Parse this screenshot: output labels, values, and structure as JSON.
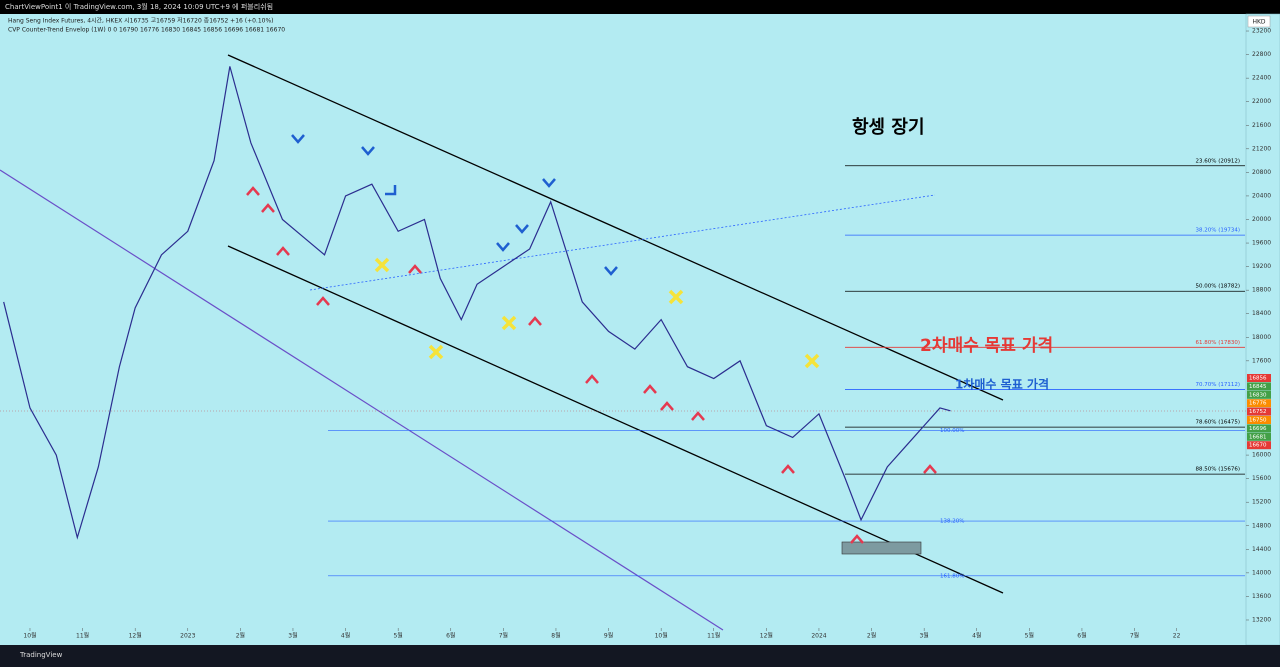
{
  "header": {
    "publisher": "ChartViewPoint1 이 TradingView.com, 3월 18, 2024 10:09 UTC+9 에 퍼블리쉬됨",
    "legend_main": "Hang Seng Index Futures, 4시간, HKEX  시16735  고16759  저16720  종16752  +16 (+0.10%)",
    "legend_indicator": "CVP Counter-Trend Envelop (1W)  0  0  16790  16776  16830  16845  16856  16696  16681  16670",
    "currency": "HKD",
    "brand": "TradingView"
  },
  "chart_data": {
    "type": "line",
    "title": "항셍 장기",
    "annotations": [
      {
        "text": "2차매수 목표 가격",
        "color": "#e53935"
      },
      {
        "text": "1차매수 목표 가격",
        "color": "#1e5fd0"
      }
    ],
    "x": [
      -0.5,
      0,
      0.5,
      0.9,
      1.3,
      1.7,
      2,
      2.5,
      3,
      3.5,
      3.8,
      4.2,
      4.8,
      5.2,
      5.6,
      6,
      6.5,
      7,
      7.5,
      7.8,
      8.2,
      8.5,
      9,
      9.5,
      9.9,
      10.5,
      11,
      11.5,
      12,
      12.5,
      13,
      13.5,
      14,
      14.5,
      15,
      15.5,
      15.8,
      16.3,
      16.7,
      17,
      17.3,
      17.5
    ],
    "series": [
      {
        "name": "Hang Seng Index Futures",
        "color": "#2b2d8f",
        "values": [
          18600,
          16800,
          16000,
          14600,
          15800,
          17500,
          18500,
          19400,
          19800,
          21000,
          22600,
          21300,
          20000,
          19700,
          19400,
          20400,
          20600,
          19800,
          20000,
          19000,
          18300,
          18900,
          19200,
          19500,
          20300,
          18600,
          18100,
          17800,
          18300,
          17500,
          17300,
          17600,
          16500,
          16300,
          16700,
          15600,
          14900,
          15800,
          16200,
          16500,
          16800,
          16752
        ]
      }
    ],
    "xlim": [
      -0.57,
      23.1
    ],
    "ylim": [
      13064,
      23489
    ],
    "xticks": [
      {
        "value": 0,
        "label": "10월"
      },
      {
        "value": 1,
        "label": "11월"
      },
      {
        "value": 2,
        "label": "12월"
      },
      {
        "value": 3,
        "label": "2023"
      },
      {
        "value": 4,
        "label": "2월"
      },
      {
        "value": 5,
        "label": "3월"
      },
      {
        "value": 6,
        "label": "4월"
      },
      {
        "value": 7,
        "label": "5월"
      },
      {
        "value": 8,
        "label": "6월"
      },
      {
        "value": 9,
        "label": "7월"
      },
      {
        "value": 10,
        "label": "8월"
      },
      {
        "value": 11,
        "label": "9월"
      },
      {
        "value": 12,
        "label": "10월"
      },
      {
        "value": 13,
        "label": "11월"
      },
      {
        "value": 14,
        "label": "12월"
      },
      {
        "value": 15,
        "label": "2024"
      },
      {
        "value": 16,
        "label": "2월"
      },
      {
        "value": 17,
        "label": "3월"
      },
      {
        "value": 18,
        "label": "4월"
      },
      {
        "value": 19,
        "label": "5월"
      },
      {
        "value": 20,
        "label": "6월"
      },
      {
        "value": 21,
        "label": "7월"
      },
      {
        "value": 21.8,
        "label": "22"
      }
    ],
    "yticks": [
      13200,
      13600,
      14000,
      14400,
      14800,
      15200,
      15600,
      16000,
      17600,
      18000,
      18400,
      18800,
      19200,
      19600,
      20000,
      20400,
      20800,
      21200,
      21600,
      22000,
      22400,
      22800,
      23200
    ],
    "fib_levels": [
      {
        "label": "23.60% (20912)",
        "value": 20912,
        "color": "#000000"
      },
      {
        "label": "38.20% (19734)",
        "value": 19734,
        "color": "#2962ff"
      },
      {
        "label": "50.00% (18782)",
        "value": 18782,
        "color": "#000000"
      },
      {
        "label": "61.80% (17830)",
        "value": 17830,
        "color": "#e53935"
      },
      {
        "label": "70.70% (17112)",
        "value": 17112,
        "color": "#2962ff"
      },
      {
        "label": "78.60% (16475)",
        "value": 16475,
        "color": "#000000"
      },
      {
        "label": "88.50% (15676)",
        "value": 15676,
        "color": "#000000"
      }
    ],
    "extension_levels": [
      {
        "label": "100.00%",
        "value": 16420,
        "color": "#2962ff"
      },
      {
        "label": "138.20%",
        "value": 14880,
        "color": "#2962ff"
      },
      {
        "label": "161.80%",
        "value": 13950,
        "color": "#2962ff"
      }
    ],
    "price_tags": [
      {
        "value": 16856,
        "color": "#e53935"
      },
      {
        "value": 16845,
        "color": "#43a047"
      },
      {
        "value": 16830,
        "color": "#43a047"
      },
      {
        "value": 16776,
        "color": "#fb8c00"
      },
      {
        "value": 16752,
        "color": "#e53935"
      },
      {
        "value": 16750,
        "color": "#fb8c00"
      },
      {
        "value": 16696,
        "color": "#43a047"
      },
      {
        "value": 16681,
        "color": "#43a047"
      },
      {
        "value": 16670,
        "color": "#e53935"
      }
    ]
  }
}
